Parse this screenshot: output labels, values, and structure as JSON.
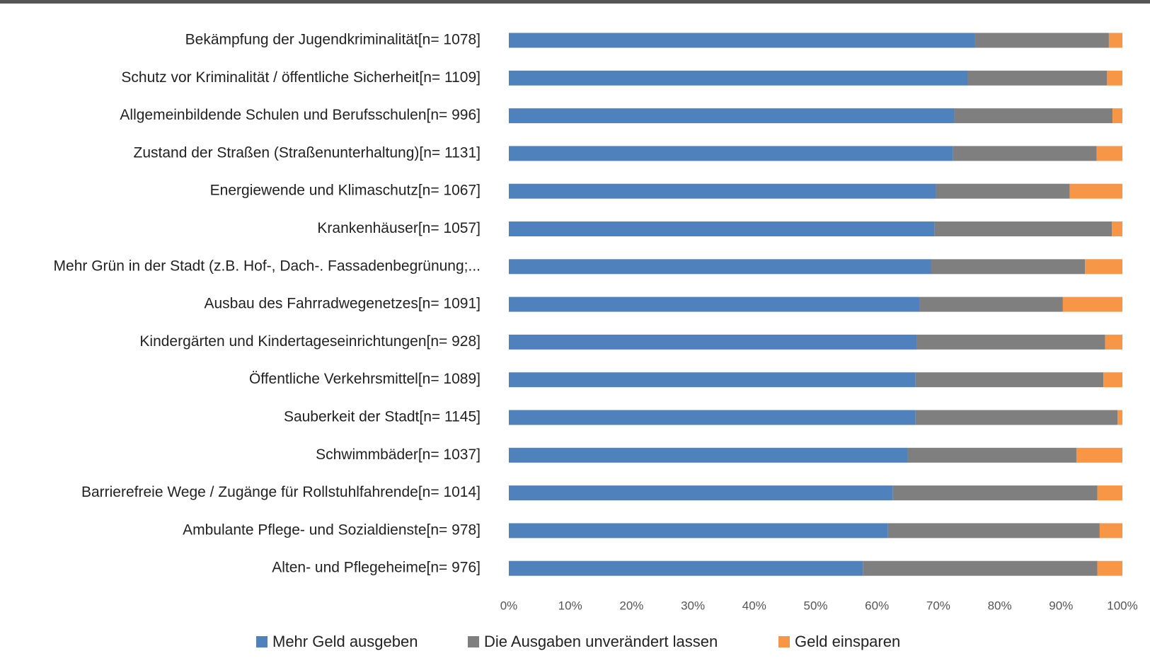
{
  "chart_data": {
    "type": "stacked_barh",
    "categories": [
      "Bekämpfung der Jugendkriminalität[n= 1078]",
      "Schutz vor Kriminalität / öffentliche Sicherheit[n= 1109]",
      "Allgemeinbildende Schulen und Berufsschulen[n= 996]",
      "Zustand der Straßen (Straßenunterhaltung)[n= 1131]",
      "Energiewende und Klimaschutz[n= 1067]",
      "Krankenhäuser[n= 1057]",
      "Mehr Grün in der Stadt (z.B. Hof-, Dach-. Fassadenbegrünung;...",
      "Ausbau des Fahrradwegenetzes[n= 1091]",
      "Kindergärten und Kindertageseinrichtungen[n= 928]",
      "Öffentliche Verkehrsmittel[n= 1089]",
      "Sauberkeit der Stadt[n= 1145]",
      "Schwimmbäder[n= 1037]",
      "Barrierefreie Wege / Zugänge für Rollstuhlfahrende[n= 1014]",
      "Ambulante Pflege- und Sozialdienste[n= 978]",
      "Alten- und Pflegeheime[n= 976]"
    ],
    "series": [
      {
        "name": "Mehr Geld ausgeben",
        "color": "#4f81bd",
        "values": [
          76,
          74.8,
          72.6,
          72.4,
          69.6,
          69.4,
          68.8,
          66.9,
          66.5,
          66.3,
          66.3,
          65,
          62.6,
          61.8,
          57.7
        ]
      },
      {
        "name": "Die Ausgaben unverändert lassen",
        "color": "#7f7f7f",
        "values": [
          21.8,
          22.7,
          25.8,
          23.4,
          21.8,
          28.9,
          25.1,
          23.4,
          30.7,
          30.6,
          32.9,
          27.5,
          33.3,
          34.5,
          38.2
        ]
      },
      {
        "name": "Geld einsparen",
        "color": "#f79646",
        "values": [
          2.2,
          2.5,
          1.6,
          4.2,
          8.6,
          1.7,
          6.1,
          9.7,
          2.8,
          3.1,
          0.8,
          7.5,
          4.1,
          3.7,
          4.1
        ]
      }
    ],
    "xlim": [
      0,
      100
    ],
    "xticks": [
      {
        "value": 0,
        "label": "0%"
      },
      {
        "value": 10,
        "label": "10%"
      },
      {
        "value": 20,
        "label": "20%"
      },
      {
        "value": 30,
        "label": "30%"
      },
      {
        "value": 40,
        "label": "40%"
      },
      {
        "value": 50,
        "label": "50%"
      },
      {
        "value": 60,
        "label": "60%"
      },
      {
        "value": 70,
        "label": "70%"
      },
      {
        "value": 80,
        "label": "80%"
      },
      {
        "value": 90,
        "label": "90%"
      },
      {
        "value": 100,
        "label": "100%"
      }
    ],
    "legend": "bottom"
  }
}
